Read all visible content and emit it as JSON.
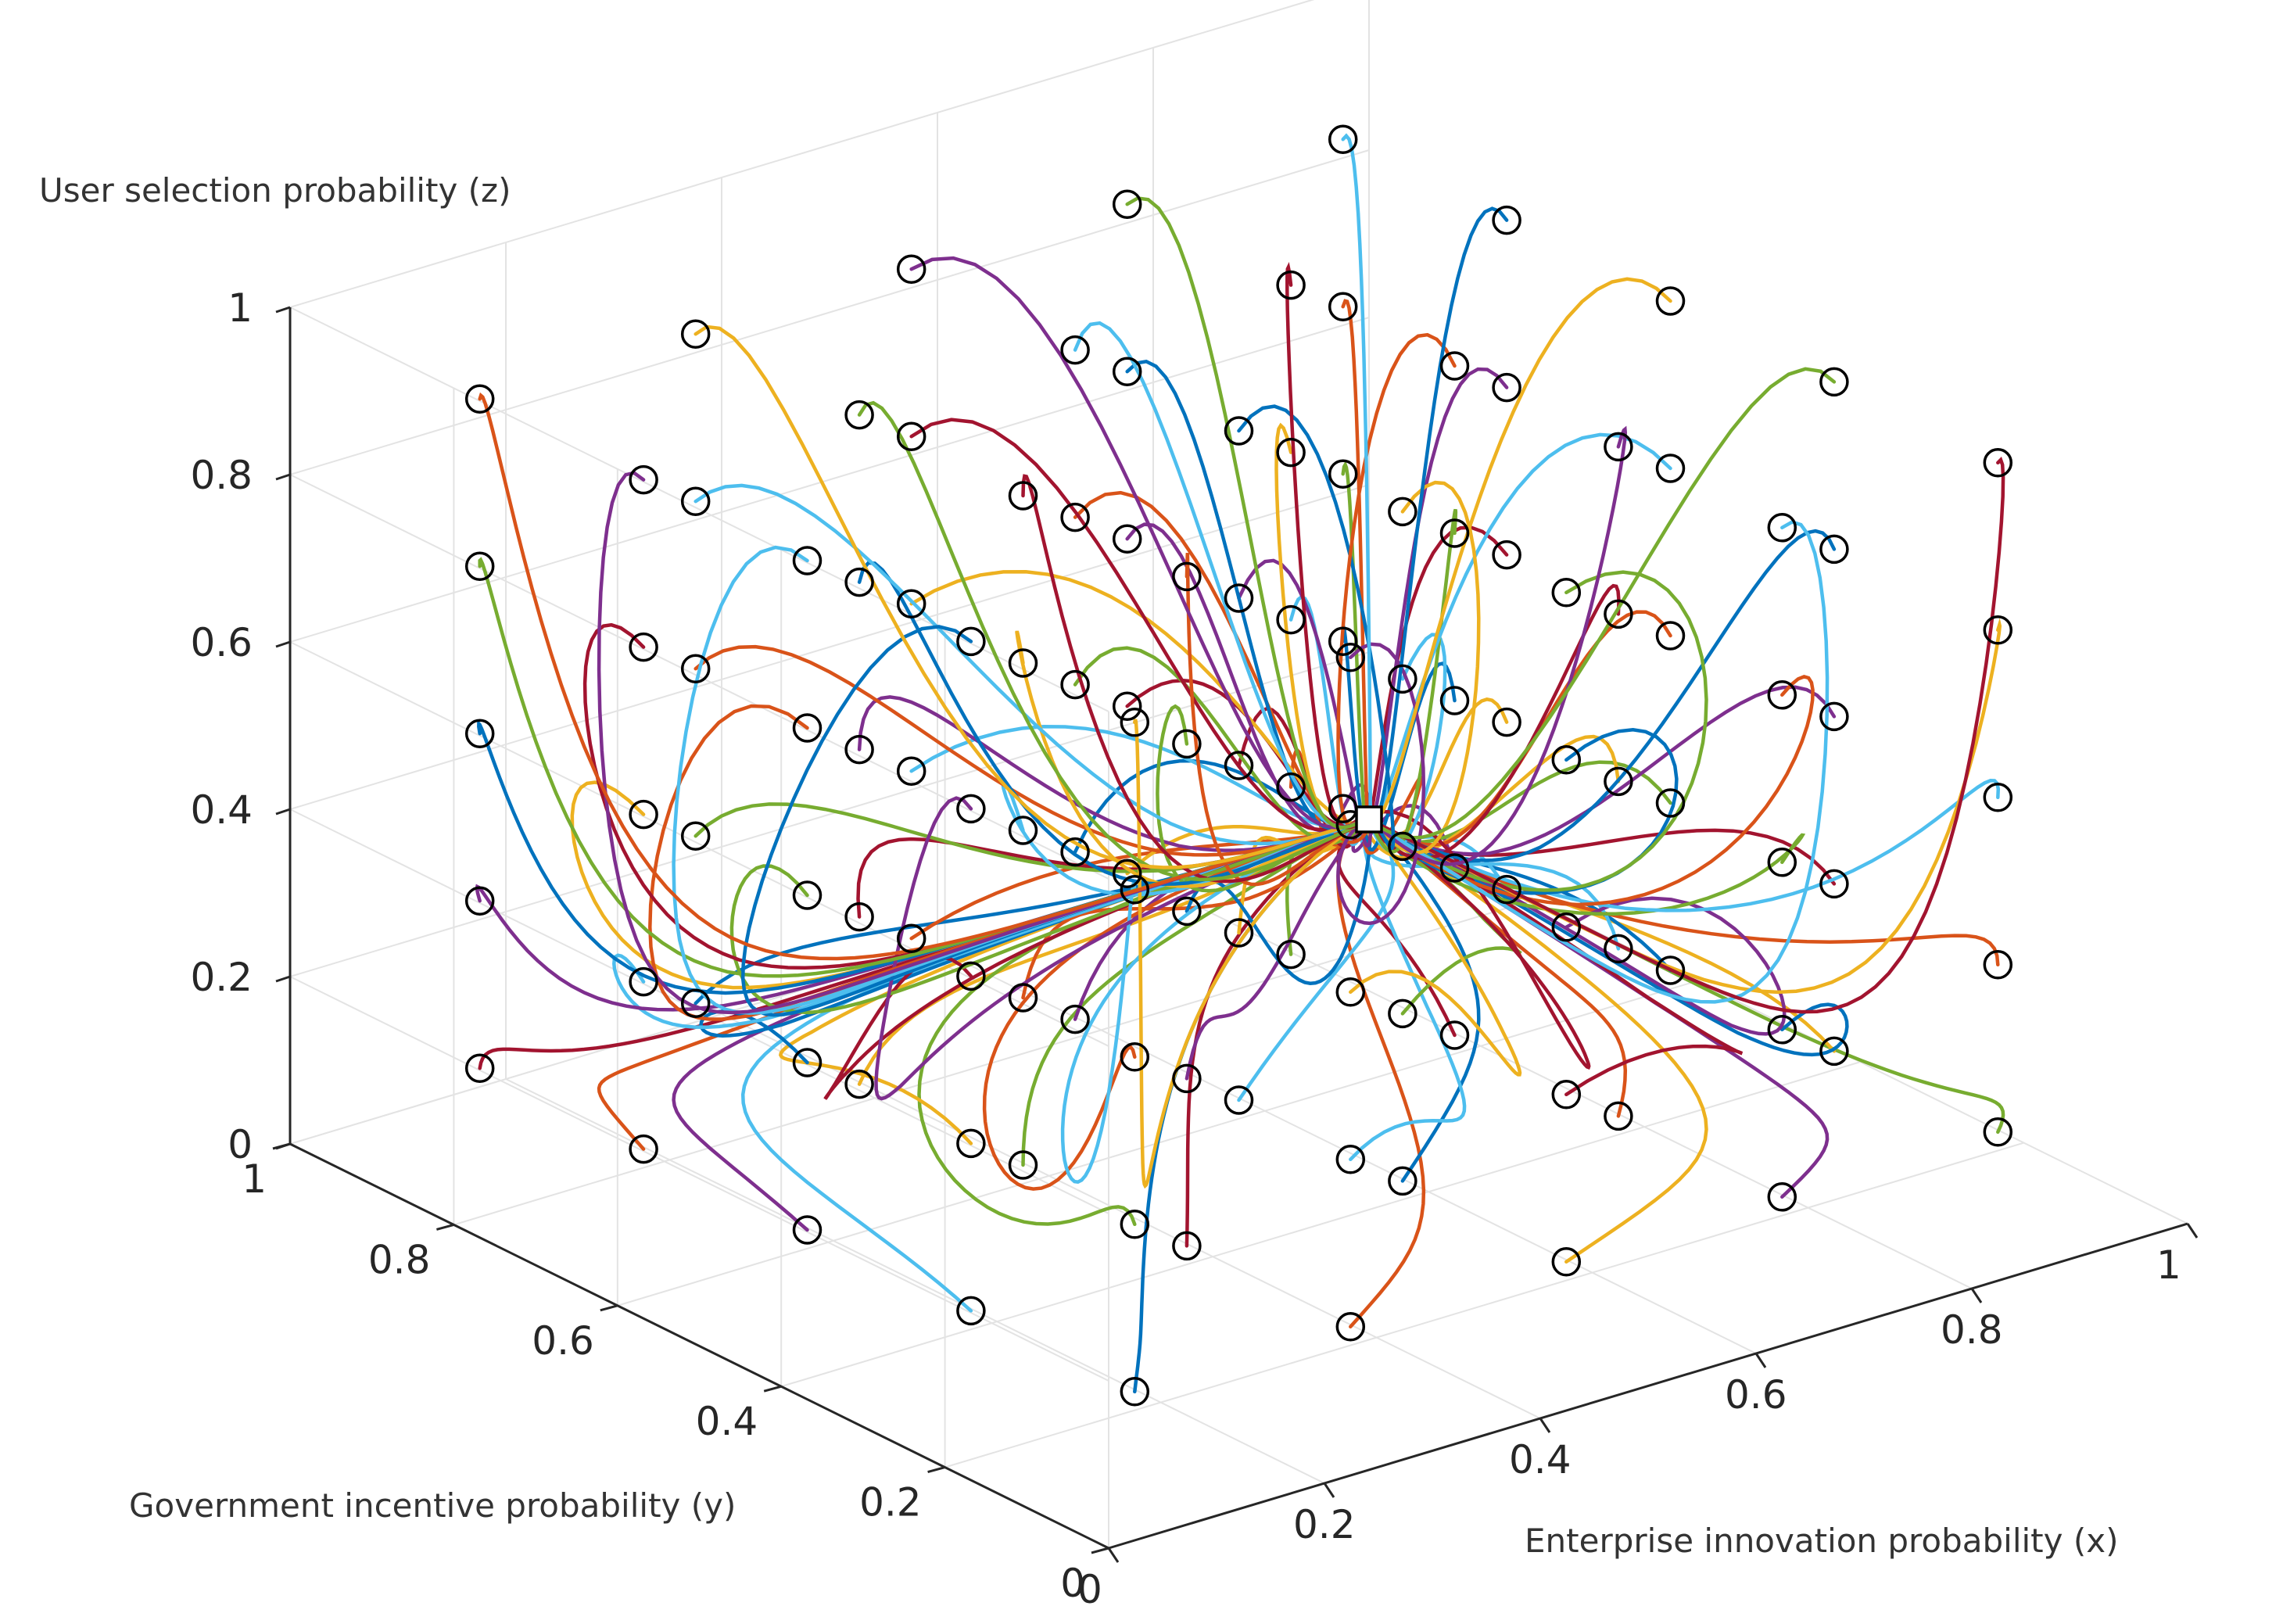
{
  "chart_data": {
    "type": "line",
    "subtype": "3d-phase-trajectories",
    "title": "",
    "xlabel": "Enterprise innovation probability (x)",
    "ylabel": "Government incentive probability (y)",
    "zlabel": "User selection probability (z)",
    "xlim": [
      0,
      1
    ],
    "ylim": [
      0,
      1
    ],
    "zlim": [
      0,
      1
    ],
    "xticks": [
      "0",
      "0.2",
      "0.4",
      "0.6",
      "0.8",
      "1"
    ],
    "yticks": [
      "0",
      "0.2",
      "0.4",
      "0.6",
      "0.8",
      "1"
    ],
    "zticks": [
      "0",
      "0.2",
      "0.4",
      "0.6",
      "0.8",
      "1"
    ],
    "grid": true,
    "initial_grid_values": [
      0.1,
      0.3,
      0.5,
      0.7,
      0.9
    ],
    "initial_marker": "circle",
    "equilibrium_marker": "square",
    "equilibrium_point": [
      1,
      1,
      0
    ],
    "colors": [
      "#0072BD",
      "#D95319",
      "#EDB120",
      "#7E2F8E",
      "#77AC30",
      "#4DBEEE",
      "#A2142F"
    ]
  }
}
